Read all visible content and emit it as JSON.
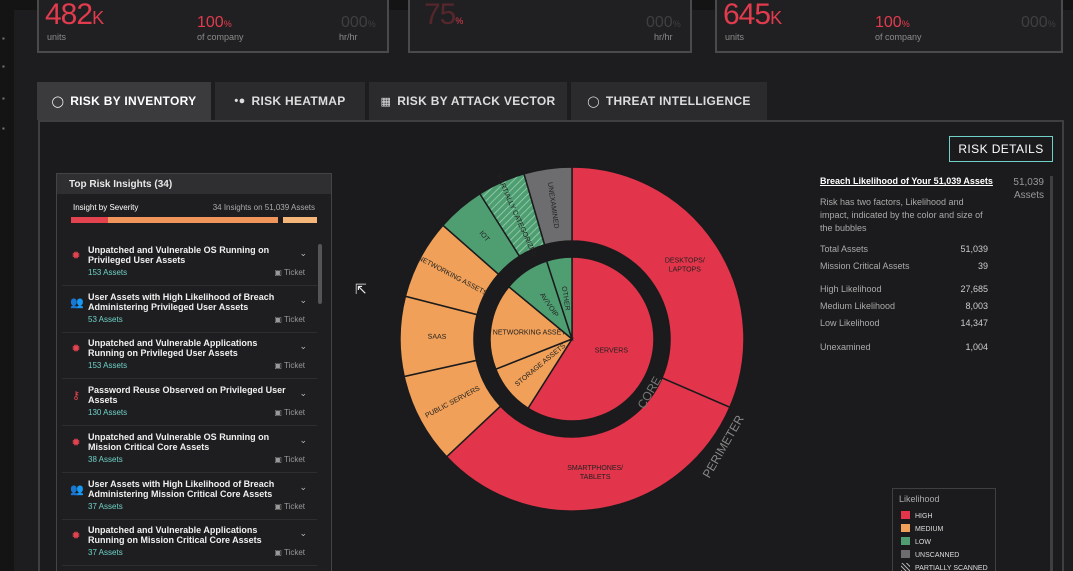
{
  "kpis": [
    {
      "value": "482",
      "unit": "K",
      "sub": "units",
      "pct": "100",
      "pct_unit": "%",
      "pct_sub": "of company",
      "rate": "000",
      "rate_unit": "%",
      "rate_sub": "hr/hr"
    },
    {
      "value": "75",
      "unit": "%",
      "sub": "",
      "pct": "",
      "pct_unit": "",
      "pct_sub": "",
      "rate": "000",
      "rate_unit": "%",
      "rate_sub": "hr/hr"
    },
    {
      "value": "645",
      "unit": "K",
      "sub": "units",
      "pct": "100",
      "pct_unit": "%",
      "pct_sub": "of company",
      "rate": "000",
      "rate_unit": "%",
      "rate_sub": ""
    }
  ],
  "tabs": [
    {
      "label": "RISK BY INVENTORY",
      "icon": "circle-icon"
    },
    {
      "label": "RISK HEATMAP",
      "icon": "bubbles-icon"
    },
    {
      "label": "RISK BY ATTACK VECTOR",
      "icon": "grid-icon"
    },
    {
      "label": "THREAT INTELLIGENCE",
      "icon": "circle-icon"
    }
  ],
  "risk_details_label": "RISK DETAILS",
  "insights": {
    "title": "Top Risk Insights (34)",
    "severity_label": "Insight by Severity",
    "severity_summary": "34 Insights on 51,039 Assets",
    "severity_bar": [
      {
        "fraction": 0.15,
        "color": "#e2434f"
      },
      {
        "fraction": 0.69,
        "color": "#f0955c"
      },
      {
        "fraction": 0.02,
        "color": "#1b1b1d"
      },
      {
        "fraction": 0.14,
        "color": "#f5b67a"
      }
    ],
    "ticket_label": "Ticket",
    "items": [
      {
        "title": "Unpatched and Vulnerable OS Running on Privileged User Assets",
        "assets": "153 Assets",
        "icon": "bug-icon"
      },
      {
        "title": "User Assets with High Likelihood of Breach Administering Privileged User Assets",
        "assets": "53 Assets",
        "icon": "users-icon"
      },
      {
        "title": "Unpatched and Vulnerable Applications Running on Privileged User Assets",
        "assets": "153 Assets",
        "icon": "bug-icon"
      },
      {
        "title": "Password Reuse Observed on Privileged User Assets",
        "assets": "130 Assets",
        "icon": "key-icon"
      },
      {
        "title": "Unpatched and Vulnerable OS Running on Mission Critical Core Assets",
        "assets": "38 Assets",
        "icon": "bug-icon"
      },
      {
        "title": "User Assets with High Likelihood of Breach Administering Mission Critical Core Assets",
        "assets": "37 Assets",
        "icon": "users-icon"
      },
      {
        "title": "Unpatched and Vulnerable Applications Running on Mission Critical Core Assets",
        "assets": "37 Assets",
        "icon": "bug-icon"
      }
    ]
  },
  "donut": {
    "ring_labels": {
      "inner": "CORE",
      "outer": "PERIMETER"
    },
    "inner": [
      {
        "label": "SERVERS",
        "value": 59,
        "color": "#e2344a"
      },
      {
        "label": "STORAGE ASSETS",
        "value": 10,
        "color": "#f0a058"
      },
      {
        "label": "NETWORKING ASSETS",
        "value": 17,
        "color": "#f0a058"
      },
      {
        "label": "AV/VOIP",
        "value": 9,
        "color": "#4f9e72"
      },
      {
        "label": "OTHER",
        "value": 5,
        "color": "#4f9e72"
      }
    ],
    "outer": [
      {
        "label": "DESKTOPS/ LAPTOPS",
        "value": 31.5,
        "color": "#e2344a"
      },
      {
        "label": "SMARTPHONES/ TABLETS",
        "value": 31.5,
        "color": "#e2344a"
      },
      {
        "label": "PUBLIC SERVERS",
        "value": 8.5,
        "color": "#f0a058"
      },
      {
        "label": "SAAS",
        "value": 7.5,
        "color": "#f0a058"
      },
      {
        "label": "NETWORKING ASSETS",
        "value": 7.5,
        "color": "#f0a058"
      },
      {
        "label": "IOT",
        "value": 4.5,
        "color": "#4f9e72"
      },
      {
        "label": "PARTIALLY CATEGORIZED",
        "value": 4.5,
        "color": "#4f9e72",
        "hatched": true
      },
      {
        "label": "UNEXAMINED",
        "value": 4.5,
        "color": "#6d6d6f"
      }
    ]
  },
  "breach": {
    "title": "Breach Likelihood of Your 51,039 Assets",
    "count": "51,039",
    "count_label": "Assets",
    "desc": "Risk has two factors, Likelihood and impact, indicated by the color and size of the bubbles",
    "rows": [
      {
        "label": "Total Assets",
        "value": "51,039"
      },
      {
        "label": "Mission Critical Assets",
        "value": "39"
      },
      {
        "label": "High Likelihood",
        "value": "27,685"
      },
      {
        "label": "Medium Likelihood",
        "value": "8,003"
      },
      {
        "label": "Low Likelihood",
        "value": "14,347"
      },
      {
        "label": "Unexamined",
        "value": "1,004"
      }
    ]
  },
  "legend": {
    "title": "Likelihood",
    "items": [
      {
        "label": "HIGH",
        "color": "#e2344a"
      },
      {
        "label": "MEDIUM",
        "color": "#f0a058"
      },
      {
        "label": "LOW",
        "color": "#4f9e72"
      },
      {
        "label": "UNSCANNED",
        "color": "#6d6d6f"
      },
      {
        "label": "PARTIALLY SCANNED",
        "color": "hatched"
      }
    ]
  }
}
